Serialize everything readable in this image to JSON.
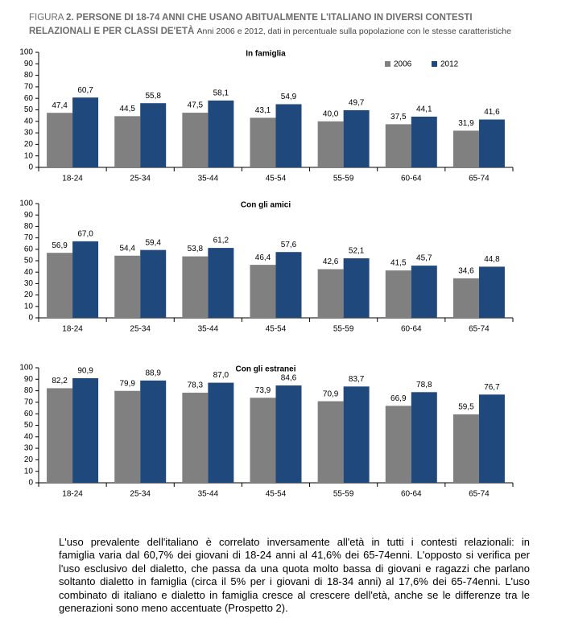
{
  "header": {
    "figure_label": "FIGURA",
    "title": "2. PERSONE DI 18-74 ANNI CHE USANO ABITUALMENTE L'ITALIANO IN DIVERSI CONTESTI RELAZIONALI E PER CLASSI DE'ETÀ",
    "subtitle": "Anni 2006 e 2012, dati in percentuale sulla popolazione con le stesse caratteristiche"
  },
  "chart_data": [
    {
      "type": "bar",
      "title": "In famiglia",
      "categories": [
        "18-24",
        "25-34",
        "35-44",
        "45-54",
        "55-59",
        "60-64",
        "65-74"
      ],
      "series": [
        {
          "name": "2006",
          "color": "#808080",
          "values": [
            47.4,
            44.5,
            47.5,
            43.1,
            40.0,
            37.5,
            31.9
          ],
          "value_labels": [
            "47,4",
            "44,5",
            "47,5",
            "43,1",
            "40,0",
            "37,5",
            "31,9"
          ]
        },
        {
          "name": "2012",
          "color": "#1f497d",
          "values": [
            60.7,
            55.8,
            58.1,
            54.9,
            49.7,
            44.1,
            41.6
          ],
          "value_labels": [
            "60,7",
            "55,8",
            "58,1",
            "54,9",
            "49,7",
            "44,1",
            "41,6"
          ]
        }
      ],
      "ylim": [
        0,
        100
      ],
      "yticks": [
        0,
        10,
        20,
        30,
        40,
        50,
        60,
        70,
        80,
        90,
        100
      ],
      "legend": "upper right"
    },
    {
      "type": "bar",
      "title": "Con gli amici",
      "categories": [
        "18-24",
        "25-34",
        "35-44",
        "45-54",
        "55-59",
        "60-64",
        "65-74"
      ],
      "series": [
        {
          "color": "#808080",
          "values": [
            56.9,
            54.4,
            53.8,
            46.4,
            42.6,
            41.5,
            34.6
          ],
          "value_labels": [
            "56,9",
            "54,4",
            "53,8",
            "46,4",
            "42,6",
            "41,5",
            "34,6"
          ]
        },
        {
          "color": "#1f497d",
          "values": [
            67.0,
            59.4,
            61.2,
            57.6,
            52.1,
            45.7,
            44.8
          ],
          "value_labels": [
            "67,0",
            "59,4",
            "61,2",
            "57,6",
            "52,1",
            "45,7",
            "44,8"
          ]
        }
      ],
      "ylim": [
        0,
        100
      ],
      "yticks": [
        0,
        10,
        20,
        30,
        40,
        50,
        60,
        70,
        80,
        90,
        100
      ]
    },
    {
      "type": "bar",
      "title": "Con gli estranei",
      "categories": [
        "18-24",
        "25-34",
        "35-44",
        "45-54",
        "55-59",
        "60-64",
        "65-74"
      ],
      "series": [
        {
          "color": "#808080",
          "values": [
            82.2,
            79.9,
            78.3,
            73.9,
            70.9,
            66.9,
            59.5
          ],
          "value_labels": [
            "82,2",
            "79,9",
            "78,3",
            "73,9",
            "70,9",
            "66,9",
            "59,5"
          ]
        },
        {
          "color": "#1f497d",
          "values": [
            90.9,
            88.9,
            87.0,
            84.6,
            83.7,
            78.8,
            76.7
          ],
          "value_labels": [
            "90,9",
            "88,9",
            "87,0",
            "84,6",
            "83,7",
            "78,8",
            "76,7"
          ]
        }
      ],
      "ylim": [
        0,
        100
      ],
      "yticks": [
        0,
        10,
        20,
        30,
        40,
        50,
        60,
        70,
        80,
        90,
        100
      ]
    }
  ],
  "paragraph": {
    "lines": [
      "L'uso prevalente dell'italiano è correlato inversamente all'età in tutti i contesti relazionali: in",
      "famiglia varia dal 60,7% dei giovani di 18-24 anni al 41,6% dei 65-74enni. L'opposto si verifica per",
      "l'uso esclusivo del dialetto, che passa da una quota molto bassa di giovani e ragazzi che parlano",
      "soltanto dialetto in famiglia (circa il 5% per i giovani di 18-34 anni) al 17,6% dei 65-74enni. L'uso",
      "combinato di italiano e dialetto in famiglia cresce al crescere dell'età, anche se le differenze tra le",
      "generazioni sono meno accentuate (Prospetto 2)."
    ]
  }
}
